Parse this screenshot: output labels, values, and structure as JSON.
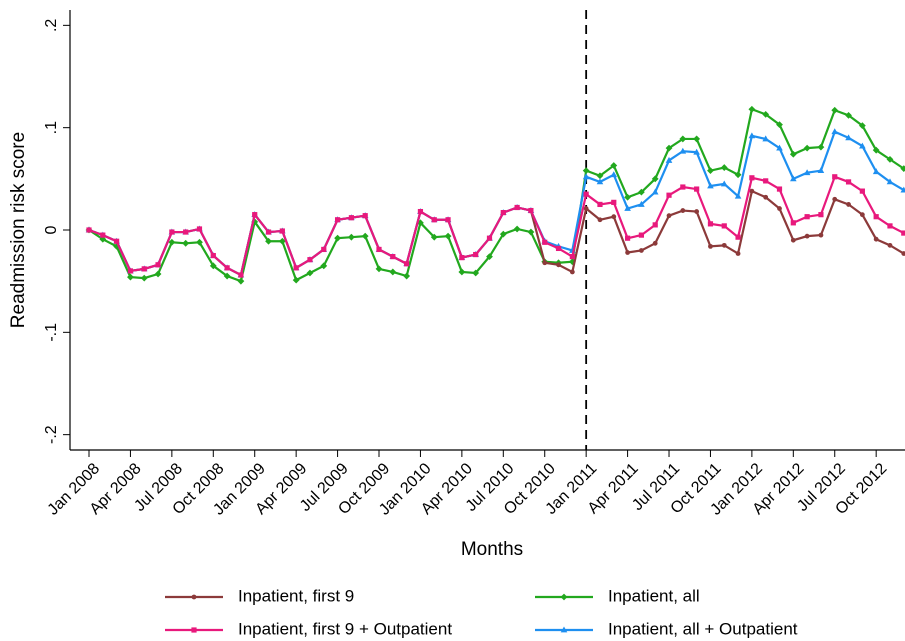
{
  "chart_data": {
    "type": "line",
    "y_label": "Readmission risk score",
    "x_label": "Months",
    "categories": [
      "Jan 2008",
      null,
      null,
      "Apr 2008",
      null,
      null,
      "Jul 2008",
      null,
      null,
      "Oct 2008",
      null,
      null,
      "Jan 2009",
      null,
      null,
      "Apr 2009",
      null,
      null,
      "Jul 2009",
      null,
      null,
      "Oct 2009",
      null,
      null,
      "Jan 2010",
      null,
      null,
      "Apr 2010",
      null,
      null,
      "Jul 2010",
      null,
      null,
      "Oct 2010",
      null,
      null,
      "Jan 2011",
      null,
      null,
      "Apr 2011",
      null,
      null,
      "Jul 2011",
      null,
      null,
      "Oct 2011",
      null,
      null,
      "Jan 2012",
      null,
      null,
      "Apr 2012",
      null,
      null,
      "Jul 2012",
      null,
      null,
      "Oct 2012",
      null,
      null
    ],
    "ylim": [
      -0.215,
      0.215
    ],
    "yticks": [
      {
        "value": -0.2,
        "label": "-.2"
      },
      {
        "value": -0.1,
        "label": "-.1"
      },
      0,
      {
        "value": 0.1,
        "label": ".1"
      },
      {
        "value": 0.2,
        "label": ".2"
      }
    ],
    "series": [
      {
        "name": "Inpatient, first 9",
        "color": "#8c3a3a",
        "marker": "circle",
        "values": [
          0,
          -0.005,
          -0.011,
          -0.04,
          -0.038,
          -0.034,
          -0.002,
          -0.002,
          0.001,
          -0.025,
          -0.037,
          -0.044,
          0.015,
          -0.002,
          -0.001,
          -0.037,
          -0.029,
          -0.019,
          0.01,
          0.012,
          0.014,
          -0.019,
          -0.026,
          -0.033,
          0.018,
          0.01,
          0.01,
          -0.027,
          -0.024,
          -0.008,
          0.017,
          0.022,
          0.019,
          -0.032,
          -0.034,
          -0.041,
          0.021,
          0.01,
          0.013,
          -0.022,
          -0.02,
          -0.013,
          0.014,
          0.019,
          0.018,
          -0.016,
          -0.015,
          -0.023,
          0.038,
          0.032,
          0.021,
          -0.01,
          -0.006,
          -0.005,
          0.03,
          0.025,
          0.015,
          -0.009,
          -0.015,
          -0.023
        ]
      },
      {
        "name": "Inpatient, all",
        "color": "#22a81e",
        "marker": "diamond",
        "values": [
          0,
          -0.009,
          -0.016,
          -0.046,
          -0.047,
          -0.043,
          -0.012,
          -0.013,
          -0.012,
          -0.035,
          -0.045,
          -0.05,
          0.008,
          -0.011,
          -0.011,
          -0.049,
          -0.042,
          -0.035,
          -0.008,
          -0.007,
          -0.006,
          -0.038,
          -0.041,
          -0.045,
          0.007,
          -0.007,
          -0.006,
          -0.041,
          -0.042,
          -0.026,
          -0.004,
          0.001,
          -0.002,
          -0.031,
          -0.032,
          -0.031,
          0.058,
          0.053,
          0.063,
          0.032,
          0.037,
          0.05,
          0.08,
          0.089,
          0.089,
          0.058,
          0.061,
          0.054,
          0.118,
          0.113,
          0.103,
          0.074,
          0.08,
          0.081,
          0.117,
          0.112,
          0.102,
          0.078,
          0.069,
          0.06
        ]
      },
      {
        "name": "Inpatient, first 9 + Outpatient",
        "color": "#e8197c",
        "marker": "square",
        "values": [
          0,
          -0.005,
          -0.011,
          -0.04,
          -0.038,
          -0.034,
          -0.002,
          -0.002,
          0.001,
          -0.025,
          -0.037,
          -0.044,
          0.015,
          -0.002,
          -0.001,
          -0.037,
          -0.029,
          -0.019,
          0.01,
          0.012,
          0.014,
          -0.019,
          -0.026,
          -0.033,
          0.018,
          0.01,
          0.01,
          -0.027,
          -0.024,
          -0.008,
          0.017,
          0.022,
          0.019,
          -0.012,
          -0.018,
          -0.026,
          0.035,
          0.025,
          0.027,
          -0.008,
          -0.005,
          0.005,
          0.034,
          0.042,
          0.04,
          0.006,
          0.004,
          -0.007,
          0.051,
          0.048,
          0.04,
          0.007,
          0.013,
          0.015,
          0.052,
          0.047,
          0.038,
          0.013,
          0.004,
          -0.003
        ]
      },
      {
        "name": "Inpatient, all + Outpatient",
        "color": "#1e8ff0",
        "marker": "triangle",
        "values": [
          0,
          -0.005,
          -0.011,
          -0.04,
          -0.038,
          -0.034,
          -0.002,
          -0.002,
          0.001,
          -0.025,
          -0.037,
          -0.044,
          0.015,
          -0.002,
          -0.001,
          -0.037,
          -0.029,
          -0.019,
          0.01,
          0.012,
          0.014,
          -0.019,
          -0.026,
          -0.033,
          0.018,
          0.01,
          0.01,
          -0.027,
          -0.024,
          -0.008,
          0.017,
          0.022,
          0.019,
          -0.011,
          -0.016,
          -0.02,
          0.052,
          0.047,
          0.054,
          0.021,
          0.025,
          0.037,
          0.068,
          0.077,
          0.076,
          0.043,
          0.045,
          0.033,
          0.092,
          0.089,
          0.08,
          0.05,
          0.056,
          0.058,
          0.096,
          0.09,
          0.082,
          0.057,
          0.047,
          0.039
        ]
      }
    ]
  }
}
